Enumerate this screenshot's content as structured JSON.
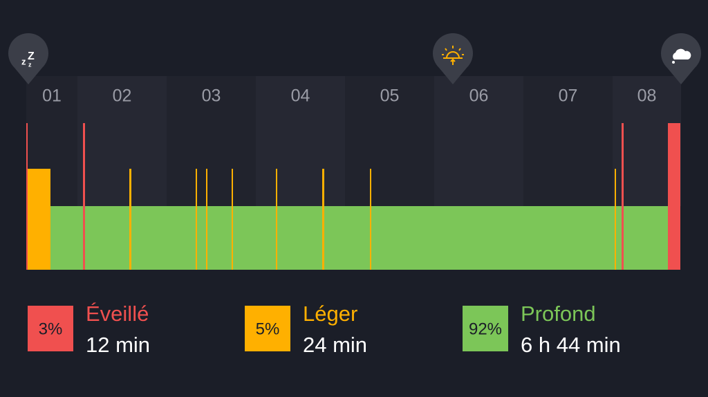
{
  "hours": [
    "01",
    "02",
    "03",
    "04",
    "05",
    "06",
    "07",
    "08"
  ],
  "legend": [
    {
      "percent": "3%",
      "name": "Éveillé",
      "duration": "12 min",
      "color": "#f0504f"
    },
    {
      "percent": "5%",
      "name": "Léger",
      "duration": "24 min",
      "color": "#ffb000"
    },
    {
      "percent": "92%",
      "name": "Profond",
      "duration": "6 h 44 min",
      "color": "#7cc658"
    }
  ]
}
